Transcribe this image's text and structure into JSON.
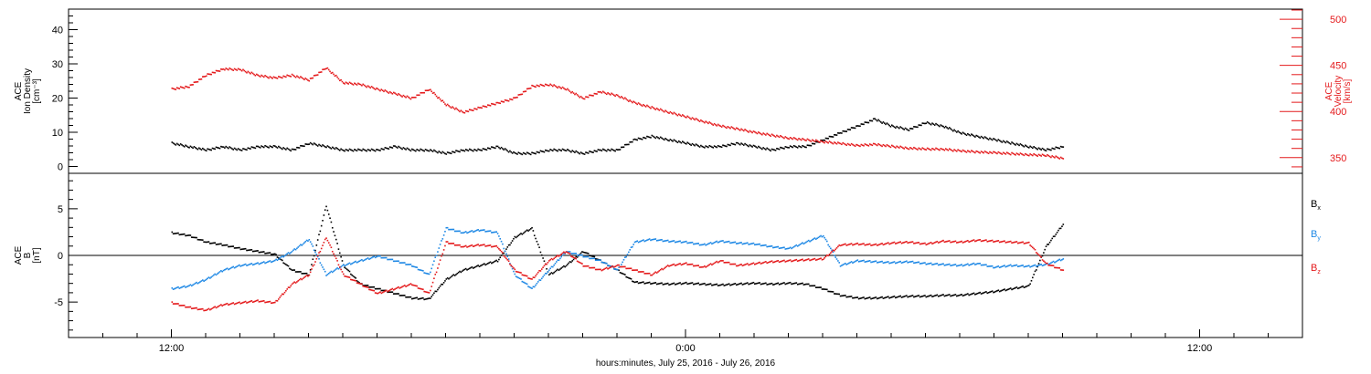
{
  "chart_data": [
    {
      "type": "scatter",
      "title": "",
      "xlabel": "hours:minutes, July 25, 2016 - July 26, 2016",
      "x_ticks": [
        "12:00",
        "0:00",
        "12:00"
      ],
      "left_axis": {
        "label_lines": [
          "ACE",
          "Ion Density",
          "[cm⁻³]"
        ],
        "ylim": [
          -2,
          46
        ],
        "ticks": [
          0,
          10,
          20,
          30,
          40
        ],
        "color": "#000000"
      },
      "right_axis": {
        "label_lines": [
          "ACE",
          "Velocity",
          "[km/s]"
        ],
        "ylim": [
          333,
          511
        ],
        "ticks": [
          350,
          400,
          450,
          500
        ],
        "color": "#e41a1c"
      },
      "series": [
        {
          "axis": "left",
          "color": "#000000",
          "points": [
            [
              6,
              7
            ],
            [
              7,
              6
            ],
            [
              8,
              5
            ],
            [
              9,
              6
            ],
            [
              10,
              5
            ],
            [
              11,
              6
            ],
            [
              12,
              6
            ],
            [
              13,
              5
            ],
            [
              14,
              7
            ],
            [
              15,
              6
            ],
            [
              16,
              5
            ],
            [
              17,
              5
            ],
            [
              18,
              5
            ],
            [
              19,
              6
            ],
            [
              20,
              5
            ],
            [
              21,
              5
            ],
            [
              22,
              4
            ],
            [
              23,
              5
            ],
            [
              24,
              5
            ],
            [
              25,
              6
            ],
            [
              26,
              4
            ],
            [
              27,
              4
            ],
            [
              28,
              5
            ],
            [
              29,
              5
            ],
            [
              30,
              4
            ],
            [
              31,
              5
            ],
            [
              32,
              5
            ],
            [
              33,
              8
            ],
            [
              34,
              9
            ],
            [
              35,
              8
            ],
            [
              36,
              7
            ],
            [
              37,
              6
            ],
            [
              38,
              6
            ],
            [
              39,
              7
            ],
            [
              40,
              6
            ],
            [
              41,
              5
            ],
            [
              42,
              6
            ],
            [
              43,
              6
            ],
            [
              44,
              8
            ],
            [
              45,
              10
            ],
            [
              46,
              12
            ],
            [
              47,
              14
            ],
            [
              48,
              12
            ],
            [
              49,
              11
            ],
            [
              50,
              13
            ],
            [
              51,
              12
            ],
            [
              52,
              10
            ],
            [
              53,
              9
            ],
            [
              54,
              8
            ],
            [
              55,
              7
            ],
            [
              56,
              6
            ],
            [
              57,
              5
            ],
            [
              58,
              6
            ]
          ]
        },
        {
          "axis": "right",
          "color": "#e41a1c",
          "points": [
            [
              6,
              425
            ],
            [
              7,
              428
            ],
            [
              8,
              440
            ],
            [
              9,
              447
            ],
            [
              10,
              446
            ],
            [
              11,
              440
            ],
            [
              12,
              437
            ],
            [
              13,
              440
            ],
            [
              14,
              435
            ],
            [
              15,
              448
            ],
            [
              16,
              432
            ],
            [
              17,
              430
            ],
            [
              18,
              425
            ],
            [
              19,
              420
            ],
            [
              20,
              415
            ],
            [
              21,
              425
            ],
            [
              22,
              408
            ],
            [
              23,
              400
            ],
            [
              24,
              405
            ],
            [
              25,
              410
            ],
            [
              26,
              415
            ],
            [
              27,
              428
            ],
            [
              28,
              430
            ],
            [
              29,
              425
            ],
            [
              30,
              415
            ],
            [
              31,
              422
            ],
            [
              32,
              418
            ],
            [
              33,
              410
            ],
            [
              34,
              405
            ],
            [
              35,
              400
            ],
            [
              36,
              395
            ],
            [
              37,
              390
            ],
            [
              38,
              385
            ],
            [
              39,
              382
            ],
            [
              40,
              378
            ],
            [
              41,
              375
            ],
            [
              42,
              372
            ],
            [
              43,
              370
            ],
            [
              44,
              368
            ],
            [
              45,
              366
            ],
            [
              46,
              364
            ],
            [
              47,
              365
            ],
            [
              48,
              363
            ],
            [
              49,
              361
            ],
            [
              50,
              360
            ],
            [
              51,
              360
            ],
            [
              52,
              358
            ],
            [
              53,
              357
            ],
            [
              54,
              356
            ],
            [
              55,
              355
            ],
            [
              56,
              354
            ],
            [
              57,
              353
            ],
            [
              58,
              350
            ]
          ]
        }
      ]
    },
    {
      "type": "scatter",
      "title": "",
      "left_axis": {
        "label_lines": [
          "ACE",
          "B",
          "[nT]"
        ],
        "ylim": [
          -8.8,
          8.8
        ],
        "ticks": [
          -5,
          0,
          5
        ],
        "color": "#000000"
      },
      "zero_line": true,
      "series": [
        {
          "name": "Bx",
          "color": "#000000",
          "points": [
            [
              6,
              2.5
            ],
            [
              7,
              2.2
            ],
            [
              8,
              1.5
            ],
            [
              9,
              1.2
            ],
            [
              10,
              0.8
            ],
            [
              11,
              0.5
            ],
            [
              12,
              0.2
            ],
            [
              13,
              -1.5
            ],
            [
              14,
              -2
            ],
            [
              15,
              5.4
            ],
            [
              16,
              -1
            ],
            [
              17,
              -3
            ],
            [
              18,
              -3.5
            ],
            [
              19,
              -4
            ],
            [
              20,
              -4.5
            ],
            [
              21,
              -4.6
            ],
            [
              22,
              -2.5
            ],
            [
              23,
              -1.5
            ],
            [
              24,
              -1
            ],
            [
              25,
              -0.5
            ],
            [
              26,
              2
            ],
            [
              27,
              3
            ],
            [
              28,
              -2
            ],
            [
              29,
              -1
            ],
            [
              30,
              0.5
            ],
            [
              31,
              -0.5
            ],
            [
              32,
              -1.5
            ],
            [
              33,
              -2.8
            ],
            [
              34,
              -2.9
            ],
            [
              35,
              -3
            ],
            [
              36,
              -2.9
            ],
            [
              37,
              -3
            ],
            [
              38,
              -3.1
            ],
            [
              39,
              -3
            ],
            [
              40,
              -2.9
            ],
            [
              41,
              -3
            ],
            [
              42,
              -2.9
            ],
            [
              43,
              -3
            ],
            [
              44,
              -3.5
            ],
            [
              45,
              -4.2
            ],
            [
              46,
              -4.5
            ],
            [
              47,
              -4.5
            ],
            [
              48,
              -4.4
            ],
            [
              49,
              -4.3
            ],
            [
              50,
              -4.3
            ],
            [
              51,
              -4.2
            ],
            [
              52,
              -4.2
            ],
            [
              53,
              -4
            ],
            [
              54,
              -3.8
            ],
            [
              55,
              -3.5
            ],
            [
              56,
              -3.2
            ],
            [
              57,
              1
            ],
            [
              58,
              3.4
            ]
          ]
        },
        {
          "name": "By",
          "color": "#1e88e5",
          "points": [
            [
              6,
              -3.5
            ],
            [
              7,
              -3.2
            ],
            [
              8,
              -2.5
            ],
            [
              9,
              -1.5
            ],
            [
              10,
              -1
            ],
            [
              11,
              -0.8
            ],
            [
              12,
              -0.5
            ],
            [
              13,
              0.5
            ],
            [
              14,
              1.8
            ],
            [
              15,
              -2
            ],
            [
              16,
              -1
            ],
            [
              17,
              -0.5
            ],
            [
              18,
              0
            ],
            [
              19,
              -0.5
            ],
            [
              20,
              -1
            ],
            [
              21,
              -2
            ],
            [
              22,
              3
            ],
            [
              23,
              2.5
            ],
            [
              24,
              2.8
            ],
            [
              25,
              2.5
            ],
            [
              26,
              -2
            ],
            [
              27,
              -3.5
            ],
            [
              28,
              -1.5
            ],
            [
              29,
              0.5
            ],
            [
              30,
              0
            ],
            [
              31,
              -0.5
            ],
            [
              32,
              -1.5
            ],
            [
              33,
              1.5
            ],
            [
              34,
              1.8
            ],
            [
              35,
              1.6
            ],
            [
              36,
              1.5
            ],
            [
              37,
              1.2
            ],
            [
              38,
              1.6
            ],
            [
              39,
              1.4
            ],
            [
              40,
              1.3
            ],
            [
              41,
              1
            ],
            [
              42,
              0.8
            ],
            [
              43,
              1.5
            ],
            [
              44,
              2.2
            ],
            [
              45,
              -1
            ],
            [
              46,
              -0.5
            ],
            [
              47,
              -0.6
            ],
            [
              48,
              -0.7
            ],
            [
              49,
              -0.6
            ],
            [
              50,
              -0.8
            ],
            [
              51,
              -0.9
            ],
            [
              52,
              -1
            ],
            [
              53,
              -0.8
            ],
            [
              54,
              -1.2
            ],
            [
              55,
              -1
            ],
            [
              56,
              -1.1
            ],
            [
              57,
              -0.9
            ],
            [
              58,
              -0.3
            ]
          ]
        },
        {
          "name": "Bz",
          "color": "#e41a1c",
          "points": [
            [
              6,
              -5
            ],
            [
              7,
              -5.5
            ],
            [
              8,
              -5.8
            ],
            [
              9,
              -5.2
            ],
            [
              10,
              -5
            ],
            [
              11,
              -4.8
            ],
            [
              12,
              -5
            ],
            [
              13,
              -3
            ],
            [
              14,
              -2
            ],
            [
              15,
              2
            ],
            [
              16,
              -2
            ],
            [
              17,
              -3
            ],
            [
              18,
              -4
            ],
            [
              19,
              -3.5
            ],
            [
              20,
              -3
            ],
            [
              21,
              -4
            ],
            [
              22,
              1.5
            ],
            [
              23,
              1
            ],
            [
              24,
              1.2
            ],
            [
              25,
              1
            ],
            [
              26,
              -1.5
            ],
            [
              27,
              -2.5
            ],
            [
              28,
              -0.5
            ],
            [
              29,
              0.5
            ],
            [
              30,
              -1
            ],
            [
              31,
              -1.5
            ],
            [
              32,
              -1
            ],
            [
              33,
              -1.5
            ],
            [
              34,
              -2
            ],
            [
              35,
              -1
            ],
            [
              36,
              -0.8
            ],
            [
              37,
              -1.2
            ],
            [
              38,
              -0.5
            ],
            [
              39,
              -1
            ],
            [
              40,
              -0.8
            ],
            [
              41,
              -0.6
            ],
            [
              42,
              -0.5
            ],
            [
              43,
              -0.4
            ],
            [
              44,
              -0.3
            ],
            [
              45,
              1.2
            ],
            [
              46,
              1.3
            ],
            [
              47,
              1.2
            ],
            [
              48,
              1.4
            ],
            [
              49,
              1.5
            ],
            [
              50,
              1.3
            ],
            [
              51,
              1.6
            ],
            [
              52,
              1.5
            ],
            [
              53,
              1.7
            ],
            [
              54,
              1.6
            ],
            [
              55,
              1.5
            ],
            [
              56,
              1.4
            ],
            [
              57,
              -0.8
            ],
            [
              58,
              -1.5
            ]
          ]
        }
      ],
      "legend": [
        "B",
        "B",
        "B"
      ],
      "legend_subs": [
        "x",
        "y",
        "z"
      ]
    }
  ]
}
